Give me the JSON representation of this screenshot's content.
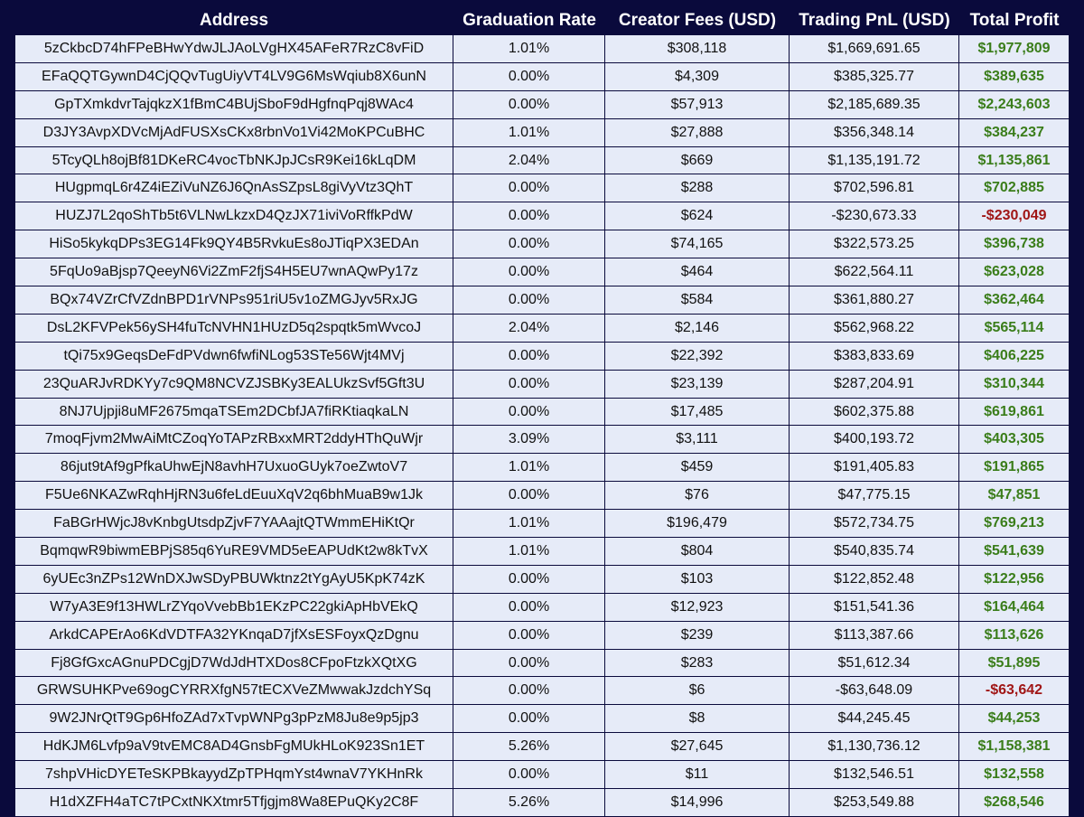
{
  "colors": {
    "background": "#0a0a3c",
    "cell_background": "#e6ebf8",
    "positive_profit": "#3a7d1a",
    "negative_profit": "#a01616"
  },
  "table": {
    "headers": [
      "Address",
      "Graduation Rate",
      "Creator Fees (USD)",
      "Trading PnL (USD)",
      "Total Profit"
    ],
    "rows": [
      [
        "5zCkbcD74hFPeBHwYdwJLJAoLVgHX45AFeR7RzC8vFiD",
        "1.01%",
        "$308,118",
        "$1,669,691.65",
        "$1,977,809"
      ],
      [
        "EFaQQTGywnD4CjQQvTugUiyVT4LV9G6MsWqiub8X6unN",
        "0.00%",
        "$4,309",
        "$385,325.77",
        "$389,635"
      ],
      [
        "GpTXmkdvrTajqkzX1fBmC4BUjSboF9dHgfnqPqj8WAc4",
        "0.00%",
        "$57,913",
        "$2,185,689.35",
        "$2,243,603"
      ],
      [
        "D3JY3AvpXDVcMjAdFUSXsCKx8rbnVo1Vi42MoKPCuBHC",
        "1.01%",
        "$27,888",
        "$356,348.14",
        "$384,237"
      ],
      [
        "5TcyQLh8ojBf81DKeRC4vocTbNKJpJCsR9Kei16kLqDM",
        "2.04%",
        "$669",
        "$1,135,191.72",
        "$1,135,861"
      ],
      [
        "HUgpmqL6r4Z4iEZiVuNZ6J6QnAsSZpsL8giVyVtz3QhT",
        "0.00%",
        "$288",
        "$702,596.81",
        "$702,885"
      ],
      [
        "HUZJ7L2qoShTb5t6VLNwLkzxD4QzJX71iviVoRffkPdW",
        "0.00%",
        "$624",
        "-$230,673.33",
        "-$230,049"
      ],
      [
        "HiSo5kykqDPs3EG14Fk9QY4B5RvkuEs8oJTiqPX3EDAn",
        "0.00%",
        "$74,165",
        "$322,573.25",
        "$396,738"
      ],
      [
        "5FqUo9aBjsp7QeeyN6Vi2ZmF2fjS4H5EU7wnAQwPy17z",
        "0.00%",
        "$464",
        "$622,564.11",
        "$623,028"
      ],
      [
        "BQx74VZrCfVZdnBPD1rVNPs951riU5v1oZMGJyv5RxJG",
        "0.00%",
        "$584",
        "$361,880.27",
        "$362,464"
      ],
      [
        "DsL2KFVPek56ySH4fuTcNVHN1HUzD5q2spqtk5mWvcoJ",
        "2.04%",
        "$2,146",
        "$562,968.22",
        "$565,114"
      ],
      [
        "tQi75x9GeqsDeFdPVdwn6fwfiNLog53STe56Wjt4MVj",
        "0.00%",
        "$22,392",
        "$383,833.69",
        "$406,225"
      ],
      [
        "23QuARJvRDKYy7c9QM8NCVZJSBKy3EALUkzSvf5Gft3U",
        "0.00%",
        "$23,139",
        "$287,204.91",
        "$310,344"
      ],
      [
        "8NJ7Ujpji8uMF2675mqaTSEm2DCbfJA7fiRKtiaqkaLN",
        "0.00%",
        "$17,485",
        "$602,375.88",
        "$619,861"
      ],
      [
        "7moqFjvm2MwAiMtCZoqYoTAPzRBxxMRT2ddyHThQuWjr",
        "3.09%",
        "$3,111",
        "$400,193.72",
        "$403,305"
      ],
      [
        "86jut9tAf9gPfkaUhwEjN8avhH7UxuoGUyk7oeZwtoV7",
        "1.01%",
        "$459",
        "$191,405.83",
        "$191,865"
      ],
      [
        "F5Ue6NKAZwRqhHjRN3u6feLdEuuXqV2q6bhMuaB9w1Jk",
        "0.00%",
        "$76",
        "$47,775.15",
        "$47,851"
      ],
      [
        "FaBGrHWjcJ8vKnbgUtsdpZjvF7YAAajtQTWmmEHiKtQr",
        "1.01%",
        "$196,479",
        "$572,734.75",
        "$769,213"
      ],
      [
        "BqmqwR9biwmEBPjS85q6YuRE9VMD5eEAPUdKt2w8kTvX",
        "1.01%",
        "$804",
        "$540,835.74",
        "$541,639"
      ],
      [
        "6yUEc3nZPs12WnDXJwSDyPBUWktnz2tYgAyU5KpK74zK",
        "0.00%",
        "$103",
        "$122,852.48",
        "$122,956"
      ],
      [
        "W7yA3E9f13HWLrZYqoVvebBb1EKzPC22gkiApHbVEkQ",
        "0.00%",
        "$12,923",
        "$151,541.36",
        "$164,464"
      ],
      [
        "ArkdCAPErAo6KdVDTFA32YKnqaD7jfXsESFoyxQzDgnu",
        "0.00%",
        "$239",
        "$113,387.66",
        "$113,626"
      ],
      [
        "Fj8GfGxcAGnuPDCgjD7WdJdHTXDos8CFpoFtzkXQtXG",
        "0.00%",
        "$283",
        "$51,612.34",
        "$51,895"
      ],
      [
        "GRWSUHKPve69ogCYRRXfgN57tECXVeZMwwakJzdchYSq",
        "0.00%",
        "$6",
        "-$63,648.09",
        "-$63,642"
      ],
      [
        "9W2JNrQtT9Gp6HfoZAd7xTvpWNPg3pPzM8Ju8e9p5jp3",
        "0.00%",
        "$8",
        "$44,245.45",
        "$44,253"
      ],
      [
        "HdKJM6Lvfp9aV9tvEMC8AD4GnsbFgMUkHLoK923Sn1ET",
        "5.26%",
        "$27,645",
        "$1,130,736.12",
        "$1,158,381"
      ],
      [
        "7shpVHicDYETeSKPBkayydZpTPHqmYst4wnaV7YKHnRk",
        "0.00%",
        "$11",
        "$132,546.51",
        "$132,558"
      ],
      [
        "H1dXZFH4aTC7tPCxtNKXtmr5Tfjgjm8Wa8EPuQKy2C8F",
        "5.26%",
        "$14,996",
        "$253,549.88",
        "$268,546"
      ]
    ]
  }
}
